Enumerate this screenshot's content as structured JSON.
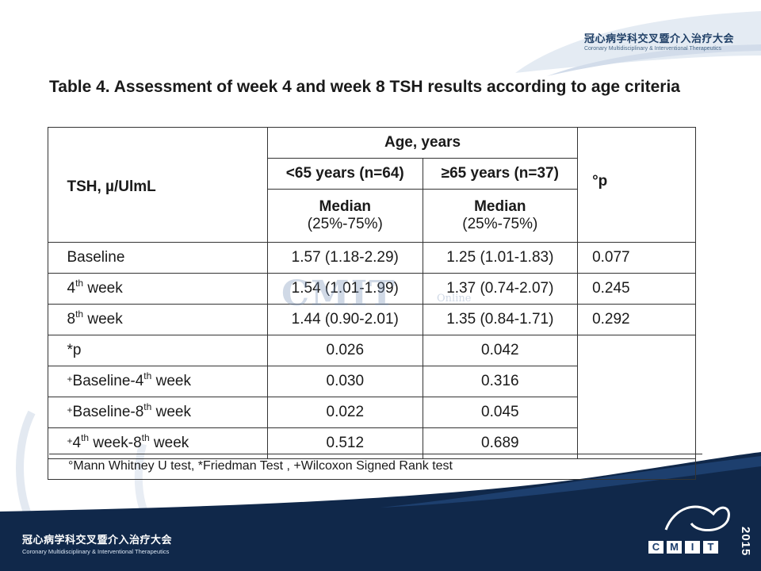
{
  "header": {
    "org_cn": "冠心病学科交叉暨介入治疗大会",
    "org_en": "Coronary Multidisciplinary & Interventional Therapeutics"
  },
  "title": "Table 4. Assessment of week 4 and week 8 TSH results according to age criteria",
  "table": {
    "corner_label": "TSH, µ/UlmL",
    "age_header": "Age, years",
    "group1": "<65 years (n=64)",
    "group2": "≥65 years (n=37)",
    "median_label": "Median",
    "iqr_label": "(25%-75%)",
    "p_header": "°p",
    "rows": [
      {
        "label": "Baseline",
        "g1": "1.57 (1.18-2.29)",
        "g2": "1.25 (1.01-1.83)",
        "p": "0.077"
      },
      {
        "label_pre": "4",
        "label_sup": "th",
        "label_post": " week",
        "g1": "1.54 (1.01-1.99)",
        "g2": "1.37 (0.74-2.07)",
        "p": "0.245"
      },
      {
        "label_pre": "8",
        "label_sup": "th",
        "label_post": " week",
        "g1": "1.44 (0.90-2.01)",
        "g2": "1.35 (0.84-1.71)",
        "p": "0.292"
      },
      {
        "label": "*p",
        "g1": "0.026",
        "g2": "0.042"
      },
      {
        "label_mark": "+",
        "label_pre": "Baseline-4",
        "label_sup": "th",
        "label_post": " week",
        "g1": "0.030",
        "g2": "0.316"
      },
      {
        "label_mark": "+",
        "label_pre": "Baseline-8",
        "label_sup": "th",
        "label_post": " week",
        "g1": "0.022",
        "g2": "0.045"
      },
      {
        "label_mark": "+",
        "label_pre": "4",
        "label_sup": "th",
        "label_mid": " week-8",
        "label_sup2": "th",
        "label_post": " week",
        "g1": "0.512",
        "g2": "0.689"
      }
    ]
  },
  "footnote": "°Mann Whitney U test, *Friedman Test , +Wilcoxon Signed Rank test",
  "watermark": {
    "main": "CMIT",
    "sub": "Online"
  },
  "footer": {
    "org_cn": "冠心病学科交叉暨介入治疗大会",
    "org_en": "Coronary Multidisciplinary & Interventional Therapeutics",
    "logo_letters": [
      "C",
      "M",
      "I",
      "T"
    ],
    "logo_year": "2015"
  },
  "colors": {
    "footer_navy": "#10284a",
    "swoosh": "#c9d6e6"
  }
}
